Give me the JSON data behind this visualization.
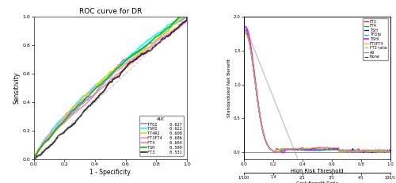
{
  "title_left": "ROC curve for DR",
  "xlabel_left": "1 - Specificity",
  "ylabel_left": "Sensitivity",
  "xlabel_right": "High Risk Threshold",
  "xlabel_right2": "Cost:Benefit Ratio",
  "ylabel_right": "Standardized Net Benefit",
  "roc_xlim": [
    0,
    1
  ],
  "roc_ylim": [
    0,
    1
  ],
  "roc_xticks": [
    0.0,
    0.2,
    0.4,
    0.6,
    0.8,
    1.0
  ],
  "roc_yticks": [
    0.0,
    0.2,
    0.4,
    0.6,
    0.8,
    1.0
  ],
  "dca_xlim": [
    0,
    1
  ],
  "dca_ylim": [
    -0.1,
    2.0
  ],
  "dca_yticks": [
    0.0,
    0.5,
    1.0,
    1.5,
    2.0
  ],
  "dca_xticks": [
    0.0,
    0.2,
    0.4,
    0.6,
    0.8,
    1.0
  ],
  "dca_xticks2": [
    "1/100",
    "1.4",
    "2/1",
    "3/1",
    "4/1",
    "100/1"
  ],
  "legend_left": {
    "title": "AUC",
    "entries": [
      {
        "label": "TFQI",
        "auc": "0.627",
        "color": "#8888FF"
      },
      {
        "label": "TSHI",
        "auc": "0.622",
        "color": "#00FFFF"
      },
      {
        "label": "TT4RI",
        "auc": "0.608",
        "color": "#DDDD00"
      },
      {
        "label": "FT3FT4",
        "auc": "0.606",
        "color": "#FF88FF"
      },
      {
        "label": "FT4",
        "auc": "0.604",
        "color": "#FF8888"
      },
      {
        "label": "TSH",
        "auc": "0.590",
        "color": "#00BB00"
      },
      {
        "label": "FT3",
        "auc": "0.531",
        "color": "#222222"
      }
    ]
  },
  "legend_right_entries": [
    {
      "label": "FT3",
      "color": "#FF0000",
      "lw": 0.9
    },
    {
      "label": "FT4",
      "color": "#00BB00",
      "lw": 0.9
    },
    {
      "label": "TSH",
      "color": "#0000FF",
      "lw": 0.9
    },
    {
      "label": "TFQIp",
      "color": "#00BBBB",
      "lw": 0.9
    },
    {
      "label": "TSHI",
      "color": "#FF00FF",
      "lw": 1.2
    },
    {
      "label": "FT3FT4",
      "color": "#CCCC00",
      "lw": 0.9
    },
    {
      "label": "FT3 ratio",
      "color": "#AAAAAA",
      "lw": 0.9,
      "ls": "dashed"
    },
    {
      "label": "All",
      "color": "#888888",
      "lw": 0.9
    },
    {
      "label": "None",
      "color": "#444444",
      "lw": 0.9,
      "ls": "dashed"
    }
  ],
  "diag_color": "#AAAAAA",
  "background": "#FFFFFF",
  "axis_color": "#444444",
  "treat_all_color": "#AAAAAA",
  "treat_none_color": "#666666"
}
